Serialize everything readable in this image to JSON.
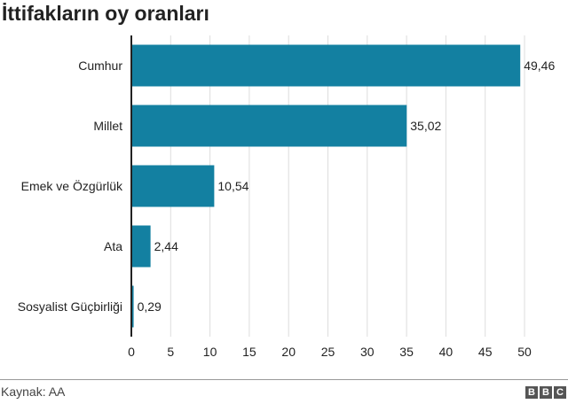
{
  "chart_data": {
    "type": "bar",
    "orientation": "horizontal",
    "title": "İttifakların oy oranları",
    "categories": [
      "Cumhur",
      "Millet",
      "Emek ve Özgürlük",
      "Ata",
      "Sosyalist Güçbirliği"
    ],
    "values": [
      49.46,
      35.02,
      10.54,
      2.44,
      0.29
    ],
    "value_labels": [
      "49,46",
      "35,02",
      "10,54",
      "2,44",
      "0,29"
    ],
    "xlim": [
      0,
      50
    ],
    "xticks": [
      "0",
      "5",
      "10",
      "15",
      "20",
      "25",
      "30",
      "35",
      "40",
      "45",
      "50"
    ],
    "grid": true,
    "bar_color": "#1380A1"
  },
  "footer": {
    "source": "Kaynak: AA",
    "logo": "BBC"
  }
}
